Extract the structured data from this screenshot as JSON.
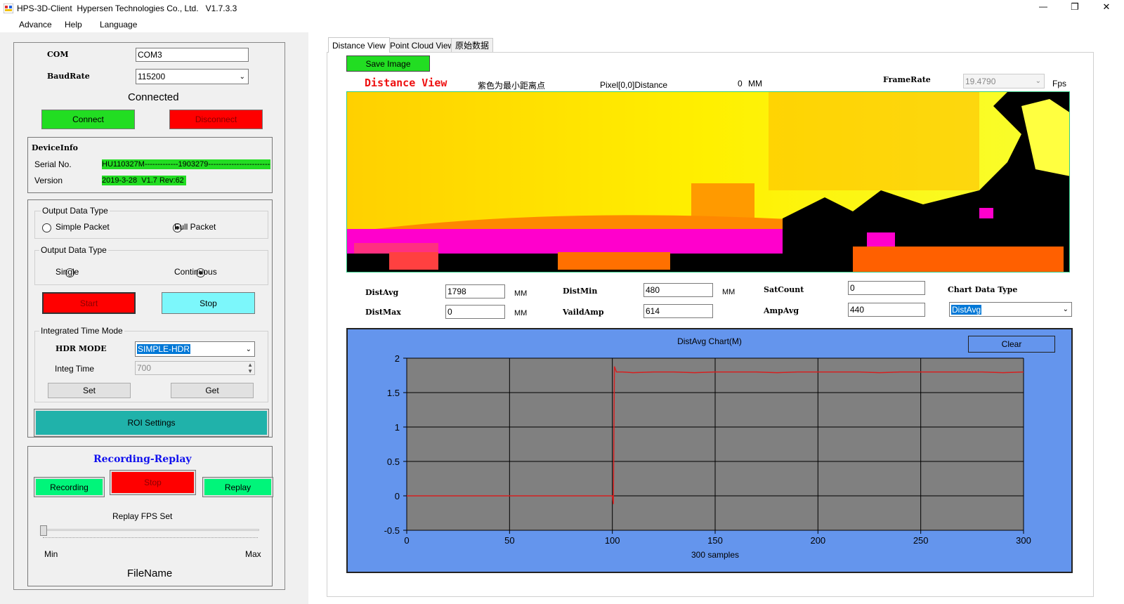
{
  "window": {
    "title": "HPS-3D-Client  Hypersen Technologies Co., Ltd.   V1.7.3.3",
    "minimize": "—",
    "maximize": "❐",
    "close": "✕"
  },
  "menu": [
    "Advance",
    "Help",
    "Language"
  ],
  "connection": {
    "com_label": "COM",
    "com_value": "COM3",
    "baud_label": "BaudRate",
    "baud_value": "115200",
    "status": "Connected",
    "connect": "Connect",
    "disconnect": "Disconnect"
  },
  "device_info": {
    "title": "DeviceInfo",
    "serial_label": "Serial No.",
    "serial_value": "HU110327M-------------1903279---------------------------",
    "version_label": "Version",
    "version_value": "2019-3-28  V1.7 Rev:62"
  },
  "output1": {
    "title": "Output Data Type",
    "opt1": "Simple Packet",
    "opt2": "Full Packet",
    "selected": "Full Packet"
  },
  "output2": {
    "title": "Output Data Type",
    "opt1": "Single",
    "opt2": "Continuous",
    "selected": "Continuous"
  },
  "run": {
    "start": "Start",
    "stop": "Stop"
  },
  "integ": {
    "title": "Integrated Time Mode",
    "hdr_label": "HDR MODE",
    "hdr_value": "SIMPLE-HDR",
    "time_label": "Integ Time",
    "time_value": "700",
    "set": "Set",
    "get": "Get"
  },
  "roi": "ROI Settings",
  "recording": {
    "title": "Recording-Replay",
    "record": "Recording",
    "stop": "Stop",
    "replay": "Replay",
    "fps_label": "Replay FPS Set",
    "min": "Min",
    "max": "Max",
    "filename": "FileName"
  },
  "tabs": [
    "Distance View",
    "Point Cloud View",
    "原始数据"
  ],
  "distance_view": {
    "save_image": "Save Image",
    "title": "Distance View",
    "purple_note": "紫色为最小距离点",
    "pixel_label": "Pixel[0,0]Distance",
    "pixel_value": "0",
    "pixel_unit": "MM",
    "framerate_label": "FrameRate",
    "framerate_value": "19.4790",
    "fps": "Fps"
  },
  "stats": {
    "distavg_label": "DistAvg",
    "distavg": "1798",
    "distavg_unit": "MM",
    "distmax_label": "DistMax",
    "distmax": "0",
    "distmax_unit": "MM",
    "distmin_label": "DistMin",
    "distmin": "480",
    "distmin_unit": "MM",
    "vaildamp_label": "VaildAmp",
    "vaildamp": "614",
    "satcount_label": "SatCount",
    "satcount": "0",
    "ampavg_label": "AmpAvg",
    "ampavg": "440",
    "chart_type_label": "Chart Data Type",
    "chart_type_value": "DistAvg"
  },
  "chart_clear": "Clear",
  "colors": {
    "chart_bg": "#6495ed",
    "plot_bg": "#808080",
    "series": "#d62020",
    "green": "#22dd22",
    "red": "#ff0000",
    "cyan": "#7cf7fb",
    "teal": "#20b2aa",
    "spring": "#00f57a"
  },
  "chart_data": {
    "type": "line",
    "title": "DistAvg Chart(M)",
    "xlabel": "300 samples",
    "ylabel": "",
    "xlim": [
      0,
      300
    ],
    "ylim": [
      -0.5,
      2
    ],
    "xticks": [
      0,
      50,
      100,
      150,
      200,
      250,
      300
    ],
    "yticks": [
      -0.5,
      0,
      0.5,
      1,
      1.5,
      2
    ],
    "xtick_labels": [
      "0",
      "50",
      "100",
      "150",
      "200",
      "250",
      "300"
    ],
    "ytick_labels": [
      "-0.5",
      "0",
      "0.5",
      "1",
      "1.5",
      "2"
    ],
    "grid": true,
    "series": [
      {
        "values_note": "",
        "x": [
          0,
          99,
          100,
          100.5,
          101,
          102,
          105,
          110,
          120,
          130,
          140,
          150,
          160,
          170,
          180,
          190,
          200,
          210,
          220,
          230,
          240,
          250,
          260,
          270,
          280,
          290,
          300
        ],
        "y": [
          0,
          0,
          0,
          -0.12,
          1.88,
          1.8,
          1.8,
          1.79,
          1.8,
          1.8,
          1.79,
          1.8,
          1.8,
          1.8,
          1.79,
          1.8,
          1.8,
          1.8,
          1.8,
          1.79,
          1.8,
          1.8,
          1.8,
          1.8,
          1.8,
          1.79,
          1.8
        ]
      }
    ]
  }
}
